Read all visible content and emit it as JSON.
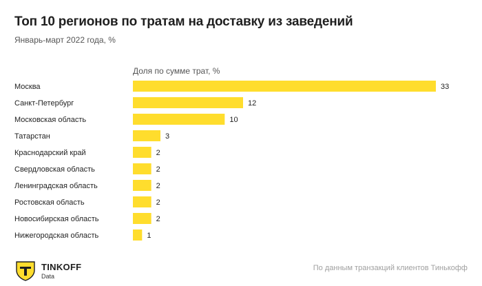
{
  "header": {
    "title": "Топ 10 регионов по тратам на доставку из заведений",
    "subtitle": "Январь-март 2022 года, %"
  },
  "chart_data": {
    "type": "bar",
    "orientation": "horizontal",
    "series_label": "Доля по сумме трат, %",
    "categories": [
      "Москва",
      "Санкт-Петербург",
      "Московская область",
      "Татарстан",
      "Краснодарский край",
      "Свердловская область",
      "Ленинградская область",
      "Ростовская область",
      "Новосибирская область",
      "Нижегородская область"
    ],
    "values": [
      33,
      12,
      10,
      3,
      2,
      2,
      2,
      2,
      2,
      1
    ],
    "xlim": [
      0,
      33
    ],
    "grid": false,
    "bar_color": "#FFDD2D"
  },
  "footer": {
    "brand": "TINKOFF",
    "brand_sub": "Data",
    "logo_icon": "tinkoff-shield-icon",
    "source": "По данным транзакций клиентов Тинькофф"
  }
}
